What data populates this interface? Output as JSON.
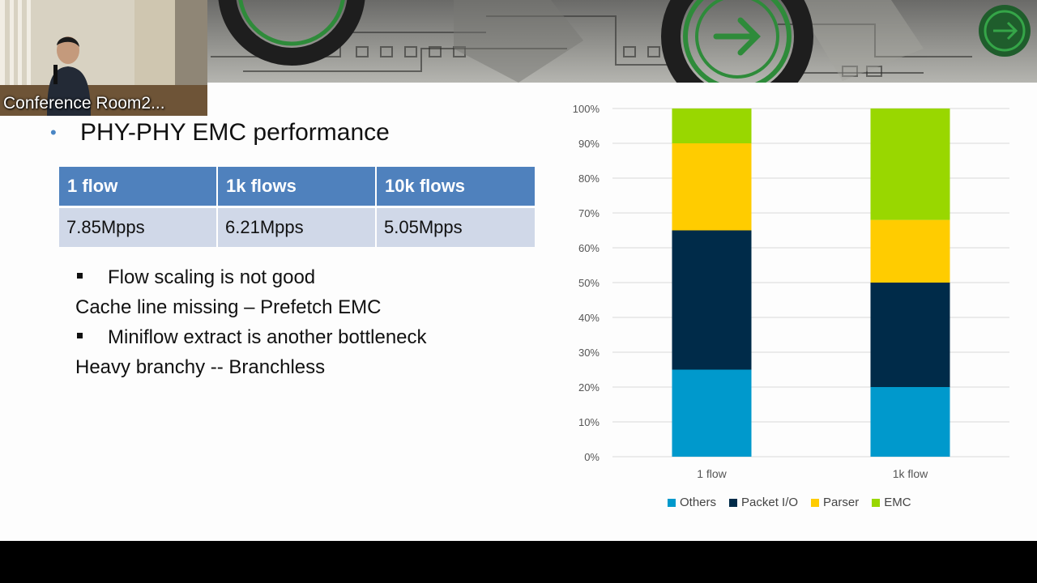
{
  "camera": {
    "label": "Conference Room2..."
  },
  "slide": {
    "title": "PHY-PHY EMC performance",
    "table": {
      "headers": [
        "1 flow",
        "1k flows",
        "10k flows"
      ],
      "values": [
        "7.85Mpps",
        "6.21Mpps",
        "5.05Mpps"
      ]
    },
    "bullets": [
      {
        "text": "Flow scaling is not good"
      },
      {
        "text": "Cache line missing – Prefetch EMC"
      },
      {
        "text": "Miniflow extract is another bottleneck"
      },
      {
        "text": "Heavy branchy  -- Branchless"
      }
    ]
  },
  "chart_data": {
    "type": "bar",
    "stacked": true,
    "percent": true,
    "categories": [
      "1 flow",
      "1k flow"
    ],
    "series": [
      {
        "name": "Others",
        "color": "#0099cc",
        "values": [
          25,
          20
        ]
      },
      {
        "name": "Packet I/O",
        "color": "#002b49",
        "values": [
          40,
          30
        ]
      },
      {
        "name": "Parser",
        "color": "#ffcc00",
        "values": [
          25,
          18
        ]
      },
      {
        "name": "EMC",
        "color": "#99d700",
        "values": [
          10,
          32
        ]
      }
    ],
    "yticks": [
      "0%",
      "10%",
      "20%",
      "30%",
      "40%",
      "50%",
      "60%",
      "70%",
      "80%",
      "90%",
      "100%"
    ],
    "ylim": [
      0,
      100
    ],
    "grid": true,
    "legend": "bottom"
  }
}
